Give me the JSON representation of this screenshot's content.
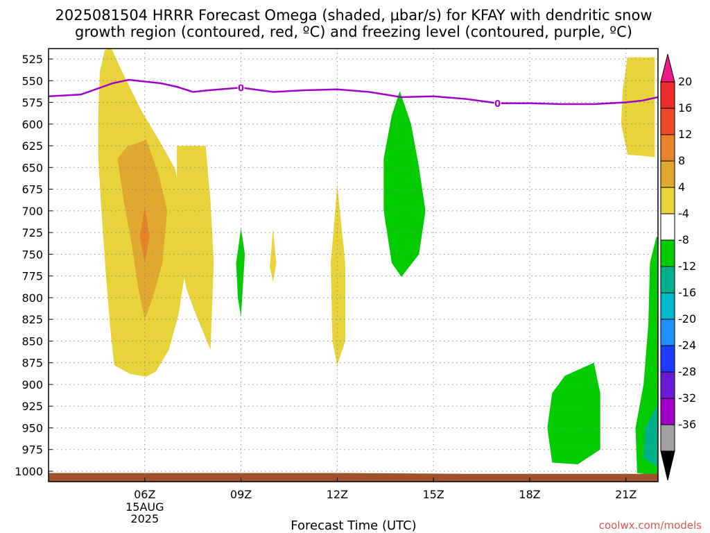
{
  "chart_data": {
    "type": "heatmap",
    "title_line1": "2025081504 HRRR Forecast Omega (shaded, μbar/s) for KFAY with dendritic snow",
    "title_line2": "growth region (contoured, red, ºC) and freezing level (contoured, purple, ºC)",
    "xlabel": "Forecast Time (UTC)",
    "ylabel": "",
    "credit": "coolwx.com/models",
    "x_ticks": [
      {
        "label": "06Z",
        "hour": 6,
        "sub": [
          "15AUG",
          "2025"
        ]
      },
      {
        "label": "09Z",
        "hour": 9,
        "sub": []
      },
      {
        "label": "12Z",
        "hour": 12,
        "sub": []
      },
      {
        "label": "15Z",
        "hour": 15,
        "sub": []
      },
      {
        "label": "18Z",
        "hour": 18,
        "sub": []
      },
      {
        "label": "21Z",
        "hour": 21,
        "sub": []
      }
    ],
    "xlim": [
      3.0,
      22.0
    ],
    "y_ticks": [
      525,
      550,
      575,
      600,
      625,
      650,
      675,
      700,
      725,
      750,
      775,
      800,
      825,
      850,
      875,
      900,
      925,
      950,
      975,
      1000
    ],
    "ylim_hpa": [
      1012,
      513
    ],
    "grid": true,
    "colorbar": {
      "labels": [
        "20",
        "16",
        "12",
        "8",
        "4",
        "-4",
        "-8",
        "-12",
        "-16",
        "-20",
        "-24",
        "-28",
        "-32",
        "-36"
      ],
      "bands": [
        "#ee1a8a",
        "#ee2c2c",
        "#ee4a2a",
        "#e8832a",
        "#e0a830",
        "#e8d43a",
        "#ffffff",
        "#00cc00",
        "#00b08a",
        "#00b8c8",
        "#1e90ff",
        "#1e3cff",
        "#6a1ad4",
        "#a000c8",
        "#a0a0a0",
        "#000000"
      ],
      "top_color": "#ee1a8a",
      "bottom_color": "#000000"
    },
    "omega_regions": [
      {
        "level": "4-8",
        "color": "#e8d43a",
        "points": [
          [
            4.95,
            512
          ],
          [
            5.3,
            540
          ],
          [
            5.9,
            585
          ],
          [
            6.5,
            622
          ],
          [
            6.95,
            652
          ],
          [
            7.15,
            690
          ],
          [
            7.3,
            760
          ],
          [
            7.05,
            820
          ],
          [
            6.75,
            860
          ],
          [
            6.35,
            885
          ],
          [
            6.05,
            891
          ],
          [
            5.55,
            888
          ],
          [
            5.05,
            878
          ],
          [
            4.95,
            845
          ],
          [
            4.8,
            780
          ],
          [
            4.65,
            700
          ],
          [
            4.55,
            640
          ],
          [
            4.55,
            590
          ],
          [
            4.6,
            540
          ],
          [
            4.75,
            515
          ]
        ]
      },
      {
        "level": "4-8",
        "color": "#e8d43a",
        "points": [
          [
            7.0,
            625
          ],
          [
            7.9,
            625
          ],
          [
            8.05,
            690
          ],
          [
            8.15,
            760
          ],
          [
            8.05,
            860
          ],
          [
            7.6,
            820
          ],
          [
            7.3,
            790
          ],
          [
            7.15,
            760
          ],
          [
            7.1,
            700
          ],
          [
            7.0,
            660
          ]
        ]
      },
      {
        "level": "8-12",
        "color": "#e0a830",
        "points": [
          [
            6.05,
            618
          ],
          [
            6.45,
            660
          ],
          [
            6.7,
            700
          ],
          [
            6.55,
            760
          ],
          [
            6.25,
            800
          ],
          [
            6.0,
            825
          ],
          [
            5.8,
            790
          ],
          [
            5.6,
            740
          ],
          [
            5.35,
            690
          ],
          [
            5.15,
            640
          ],
          [
            5.45,
            626
          ]
        ]
      },
      {
        "level": "12-16",
        "color": "#e8832a",
        "points": [
          [
            6.0,
            695
          ],
          [
            6.15,
            730
          ],
          [
            6.0,
            760
          ],
          [
            5.85,
            730
          ]
        ]
      },
      {
        "level": "-4--8",
        "color": "#00cc00",
        "points": [
          [
            9.0,
            720
          ],
          [
            9.12,
            750
          ],
          [
            9.0,
            822
          ],
          [
            8.9,
            800
          ],
          [
            8.85,
            760
          ]
        ]
      },
      {
        "level": "4-8",
        "color": "#e8d43a",
        "points": [
          [
            10.0,
            720
          ],
          [
            10.1,
            760
          ],
          [
            10.0,
            782
          ],
          [
            9.9,
            765
          ]
        ]
      },
      {
        "level": "4-8",
        "color": "#e8d43a",
        "points": [
          [
            12.0,
            670
          ],
          [
            12.25,
            760
          ],
          [
            12.25,
            850
          ],
          [
            12.0,
            878
          ],
          [
            11.85,
            850
          ],
          [
            11.8,
            760
          ]
        ]
      },
      {
        "level": "-4--8",
        "color": "#00cc00",
        "points": [
          [
            13.95,
            562
          ],
          [
            14.3,
            600
          ],
          [
            14.55,
            650
          ],
          [
            14.75,
            700
          ],
          [
            14.55,
            750
          ],
          [
            14.0,
            776
          ],
          [
            13.7,
            760
          ],
          [
            13.45,
            700
          ],
          [
            13.45,
            640
          ],
          [
            13.7,
            590
          ]
        ]
      },
      {
        "level": "-4--8",
        "color": "#00cc00",
        "points": [
          [
            20.0,
            875
          ],
          [
            20.2,
            910
          ],
          [
            20.2,
            975
          ],
          [
            19.5,
            992
          ],
          [
            18.7,
            990
          ],
          [
            18.55,
            950
          ],
          [
            18.7,
            910
          ],
          [
            19.1,
            890
          ]
        ]
      },
      {
        "level": "4-8",
        "color": "#e8d43a",
        "points": [
          [
            21.05,
            523
          ],
          [
            21.9,
            523
          ],
          [
            21.9,
            638
          ],
          [
            21.05,
            635
          ],
          [
            20.85,
            600
          ],
          [
            20.9,
            560
          ]
        ]
      },
      {
        "level": "-4--8",
        "color": "#00cc00",
        "points": [
          [
            21.95,
            730
          ],
          [
            22.0,
            730
          ],
          [
            22.0,
            1005
          ],
          [
            21.35,
            1002
          ],
          [
            21.3,
            950
          ],
          [
            21.55,
            900
          ],
          [
            21.7,
            830
          ],
          [
            21.75,
            760
          ]
        ]
      },
      {
        "level": "-8--12",
        "color": "#00b08a",
        "points": [
          [
            21.95,
            925
          ],
          [
            22.0,
            925
          ],
          [
            22.0,
            995
          ],
          [
            21.55,
            985
          ],
          [
            21.6,
            950
          ]
        ]
      }
    ],
    "freezing_level": {
      "label": "0",
      "color": "#a000c8",
      "points": [
        [
          3.0,
          568
        ],
        [
          4.0,
          566
        ],
        [
          5.0,
          553
        ],
        [
          5.5,
          549
        ],
        [
          6.0,
          551
        ],
        [
          6.5,
          553
        ],
        [
          7.0,
          557
        ],
        [
          7.5,
          563
        ],
        [
          8.0,
          561
        ],
        [
          9.0,
          558
        ],
        [
          10.0,
          563
        ],
        [
          11.0,
          561
        ],
        [
          12.0,
          560
        ],
        [
          13.0,
          563
        ],
        [
          14.0,
          569
        ],
        [
          15.0,
          568
        ],
        [
          16.0,
          571
        ],
        [
          17.0,
          576
        ],
        [
          18.0,
          576
        ],
        [
          19.0,
          577
        ],
        [
          20.0,
          577
        ],
        [
          21.0,
          575
        ],
        [
          21.5,
          573
        ],
        [
          22.0,
          569
        ]
      ],
      "label_hours": [
        9,
        17
      ]
    },
    "surface": {
      "color": "#a0522d",
      "points": [
        [
          3.0,
          1012
        ],
        [
          3.0,
          1002
        ],
        [
          8.0,
          1002
        ],
        [
          12.0,
          1002
        ],
        [
          16.0,
          1003
        ],
        [
          22.0,
          1003
        ],
        [
          22.0,
          1012
        ]
      ]
    }
  }
}
